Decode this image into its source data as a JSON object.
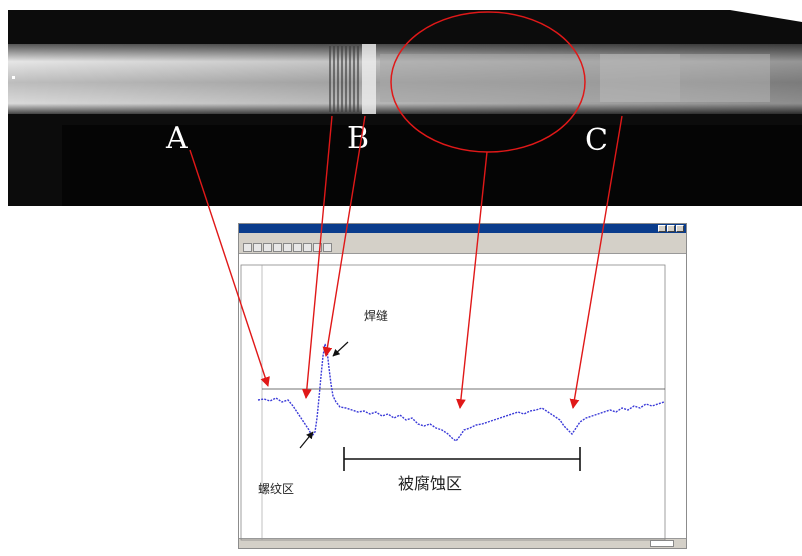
{
  "photo": {
    "labels": {
      "a": "A",
      "b": "B",
      "c": "C"
    },
    "bg_color": "#0c0c0c",
    "pipe_color": "#cfcfcf",
    "marker_color": "#e01818"
  },
  "app": {
    "title": "",
    "menu": [
      "",
      "",
      "",
      "",
      ""
    ],
    "info_line1": "",
    "info_line2": "",
    "y_ticks": [
      "",
      "",
      "",
      "",
      ""
    ],
    "x_ticks": [
      {
        "top": "",
        "bottom": ""
      },
      {
        "top": "",
        "bottom": ""
      }
    ],
    "status_text": ""
  },
  "annotations": {
    "weld": "焊缝",
    "thread_zone": "螺纹区",
    "corroded_zone": "被腐蚀区"
  },
  "colors": {
    "trace": "#3a3ad8",
    "arrow_red": "#e01818",
    "arrow_black": "#111111"
  }
}
